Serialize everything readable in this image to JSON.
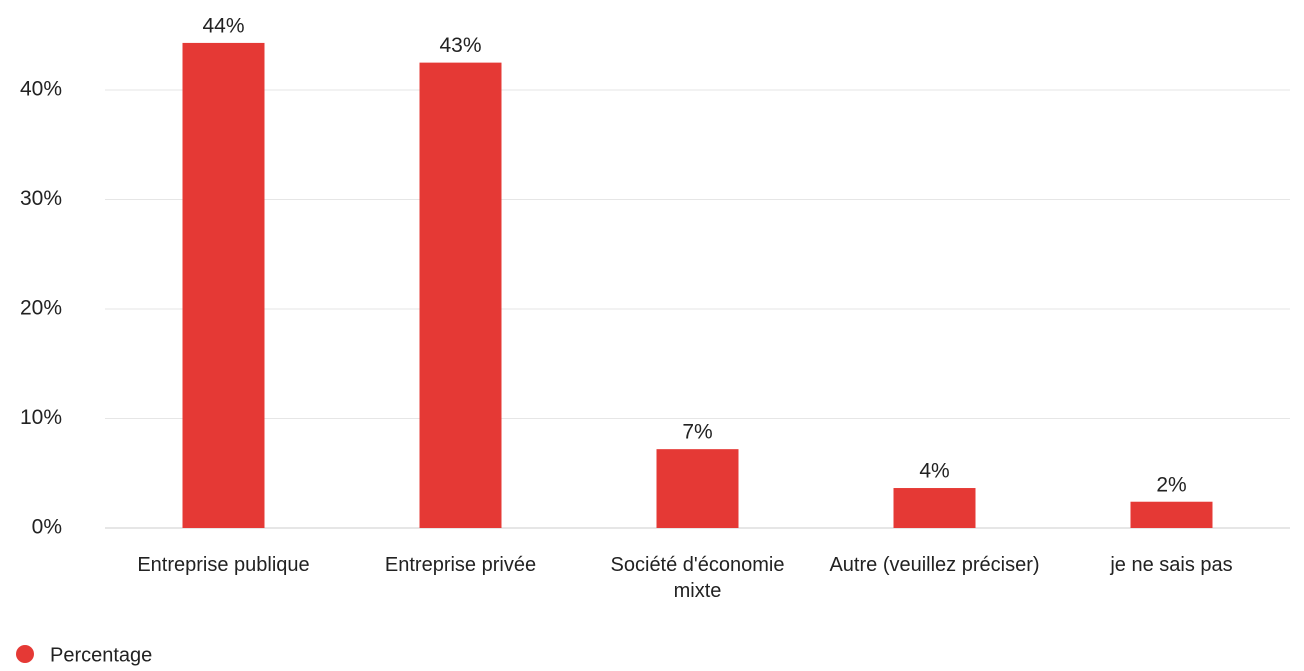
{
  "chart_data": {
    "type": "bar",
    "categories": [
      "Entreprise publique",
      "Entreprise privée",
      "Société d'économie mixte",
      "Autre (veuillez préciser)",
      "je ne sais pas"
    ],
    "series": [
      {
        "name": "Percentage",
        "color": "#e53935",
        "values": [
          44.3,
          42.5,
          7.2,
          3.65,
          2.4
        ],
        "value_labels": [
          "44%",
          "43%",
          "7%",
          "4%",
          "2%"
        ]
      }
    ],
    "ylim": [
      0,
      48
    ],
    "yticks": [
      {
        "value": 0,
        "label": "0%"
      },
      {
        "value": 10,
        "label": "10%"
      },
      {
        "value": 20,
        "label": "20%"
      },
      {
        "value": 30,
        "label": "30%"
      },
      {
        "value": 40,
        "label": "40%"
      }
    ],
    "grid": true,
    "legend": "bottom-left"
  }
}
